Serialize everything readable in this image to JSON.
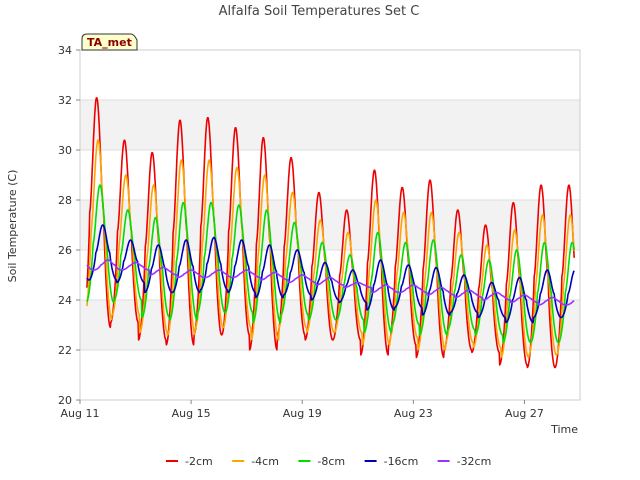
{
  "chart_data": {
    "type": "line",
    "title": "Alfalfa Soil Temperatures Set C",
    "xlabel": "Time",
    "ylabel": "Soil Temperature (C)",
    "badge": "TA_met",
    "xlim": [
      0,
      18
    ],
    "ylim": [
      20,
      34
    ],
    "yticks": [
      20,
      22,
      24,
      26,
      28,
      30,
      32,
      34
    ],
    "xticks": [
      {
        "value": 0,
        "label": "Aug 11"
      },
      {
        "value": 4,
        "label": "Aug 15"
      },
      {
        "value": 8,
        "label": "Aug 19"
      },
      {
        "value": 12,
        "label": "Aug 23"
      },
      {
        "value": 16,
        "label": "Aug 27"
      }
    ],
    "grid": true,
    "legend": "bottom",
    "series": [
      {
        "name": "-2cm",
        "color": "#ee0000",
        "daily_max": [
          32.1,
          30.4,
          29.9,
          31.2,
          31.3,
          30.9,
          30.5,
          29.7,
          28.3,
          27.6,
          29.2,
          28.5,
          28.8,
          27.6,
          27.0,
          27.9,
          28.6
        ],
        "daily_min": [
          22.9,
          23.1,
          22.4,
          22.2,
          22.6,
          22.6,
          22.0,
          22.6,
          22.4,
          22.4,
          21.8,
          22.2,
          21.7,
          22.0,
          21.9,
          21.4,
          21.3
        ]
      },
      {
        "name": "-4cm",
        "color": "#ffa500",
        "daily_max": [
          30.4,
          29.0,
          28.6,
          29.6,
          29.6,
          29.3,
          29.0,
          28.3,
          27.2,
          26.7,
          28.0,
          27.5,
          27.5,
          26.7,
          26.2,
          26.8,
          27.4
        ],
        "daily_min": [
          23.2,
          23.4,
          22.7,
          22.6,
          22.9,
          22.9,
          22.4,
          22.9,
          22.7,
          22.7,
          22.2,
          22.5,
          22.0,
          22.3,
          22.1,
          21.7,
          21.8
        ]
      },
      {
        "name": "-8cm",
        "color": "#00dd00",
        "daily_max": [
          28.6,
          27.6,
          27.3,
          27.9,
          27.9,
          27.8,
          27.6,
          27.1,
          26.3,
          25.8,
          26.7,
          26.3,
          26.4,
          25.8,
          25.6,
          26.0,
          26.3
        ],
        "daily_min": [
          23.9,
          24.0,
          23.3,
          23.2,
          23.5,
          23.5,
          23.1,
          23.4,
          23.2,
          23.2,
          22.7,
          23.0,
          22.6,
          22.8,
          22.6,
          22.3,
          22.3
        ]
      },
      {
        "name": "-16cm",
        "color": "#0000bb",
        "daily_max": [
          27.0,
          26.4,
          26.2,
          26.4,
          26.5,
          26.4,
          26.2,
          26.0,
          25.5,
          25.2,
          25.6,
          25.4,
          25.3,
          25.0,
          24.7,
          24.9,
          25.2
        ],
        "daily_min": [
          24.8,
          24.7,
          24.3,
          24.3,
          24.4,
          24.3,
          24.1,
          24.2,
          24.0,
          23.9,
          23.6,
          23.7,
          23.4,
          23.5,
          23.3,
          23.1,
          23.3
        ]
      },
      {
        "name": "-32cm",
        "color": "#9933ff",
        "daily_max": [
          25.6,
          25.5,
          25.3,
          25.2,
          25.2,
          25.2,
          25.1,
          25.0,
          24.9,
          24.7,
          24.6,
          24.6,
          24.5,
          24.4,
          24.3,
          24.2,
          24.1
        ],
        "daily_min": [
          25.2,
          25.2,
          25.0,
          24.9,
          24.9,
          24.9,
          24.8,
          24.7,
          24.6,
          24.5,
          24.3,
          24.3,
          24.2,
          24.1,
          24.0,
          23.9,
          23.8
        ]
      }
    ]
  }
}
